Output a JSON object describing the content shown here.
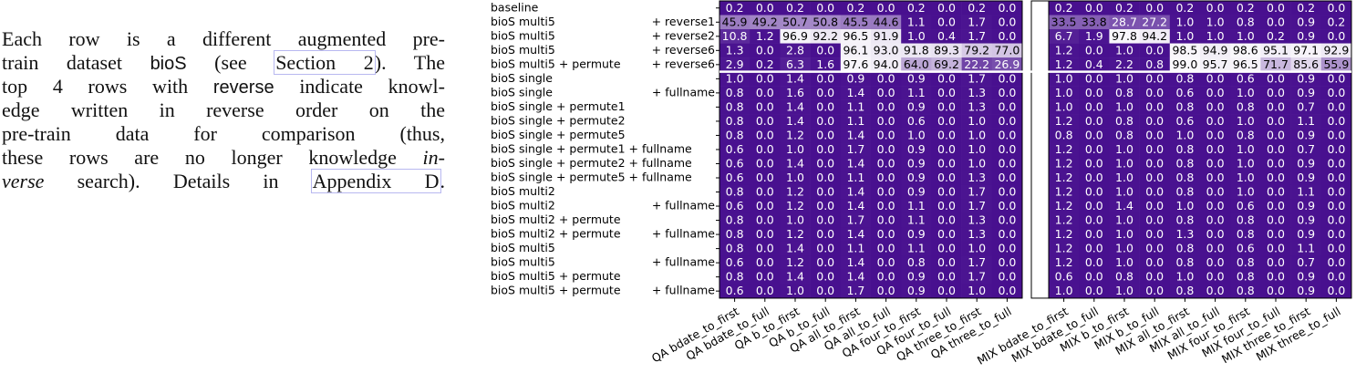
{
  "paragraph": {
    "lines": [
      [
        {
          "text": "Each row is a different augmented pre-"
        }
      ],
      [
        {
          "text": "train dataset "
        },
        {
          "text": "bioS",
          "style": "sans"
        },
        {
          "text": " (see "
        },
        {
          "text": "Section 2",
          "style": "link"
        },
        {
          "text": ").  The"
        }
      ],
      [
        {
          "text": "top 4 rows with "
        },
        {
          "text": "reverse",
          "style": "sans"
        },
        {
          "text": " indicate knowl-"
        }
      ],
      [
        {
          "text": "edge written in reverse order on the"
        }
      ],
      [
        {
          "text": "pre-train data for comparison (thus,"
        }
      ],
      [
        {
          "text": "these rows are no longer knowledge "
        },
        {
          "text": "in-",
          "style": "italic"
        }
      ],
      [
        {
          "text": "verse",
          "style": "italic"
        },
        {
          "text": " search).  Details in "
        },
        {
          "text": "Appendix D",
          "style": "link"
        },
        {
          "text": "."
        }
      ]
    ]
  },
  "chart_data": {
    "type": "heatmap",
    "rows": [
      {
        "label": "baseline"
      },
      {
        "label": "bioS multi5",
        "suffix": "+ reverse1"
      },
      {
        "label": "bioS multi5",
        "suffix": "+ reverse2"
      },
      {
        "label": "bioS multi5",
        "suffix": "+ reverse6"
      },
      {
        "label": "bioS multi5 + permute",
        "suffix": "+ reverse6"
      },
      {
        "label": "bioS single"
      },
      {
        "label": "bioS single",
        "suffix": "+ fullname"
      },
      {
        "label": "bioS single + permute1"
      },
      {
        "label": "bioS single + permute2"
      },
      {
        "label": "bioS single + permute5"
      },
      {
        "label": "bioS single + permute1 + fullname"
      },
      {
        "label": "bioS single + permute2 + fullname"
      },
      {
        "label": "bioS single + permute5 + fullname"
      },
      {
        "label": "bioS multi2"
      },
      {
        "label": "bioS multi2",
        "suffix": "+ fullname"
      },
      {
        "label": "bioS multi2 + permute"
      },
      {
        "label": "bioS multi2 + permute",
        "suffix": "+ fullname"
      },
      {
        "label": "bioS multi5"
      },
      {
        "label": "bioS multi5",
        "suffix": "+ fullname"
      },
      {
        "label": "bioS multi5 + permute"
      },
      {
        "label": "bioS multi5 + permute",
        "suffix": "+ fullname"
      }
    ],
    "columns": [
      "QA bdate_to_first",
      "QA bdate_to_full",
      "QA b_to_first",
      "QA b_to_full",
      "QA all_to_first",
      "QA all_to_full",
      "QA four_to_first",
      "QA four_to_full",
      "QA three_to_first",
      "QA three_to_full",
      null,
      "MIX bdate_to_first",
      "MIX bdate_to_full",
      "MIX b_to_first",
      "MIX b_to_full",
      "MIX all_to_first",
      "MIX all_to_full",
      "MIX four_to_first",
      "MIX four_to_full",
      "MIX three_to_first",
      "MIX three_to_full"
    ],
    "values": [
      [
        0.2,
        0.0,
        0.2,
        0.0,
        0.2,
        0.0,
        0.2,
        0.0,
        0.2,
        0.0,
        null,
        0.2,
        0.0,
        0.2,
        0.0,
        0.2,
        0.0,
        0.2,
        0.0,
        0.2,
        0.0
      ],
      [
        45.9,
        49.2,
        50.7,
        50.8,
        45.5,
        44.6,
        1.1,
        0.0,
        1.7,
        0.0,
        null,
        33.5,
        33.8,
        28.7,
        27.2,
        1.0,
        1.0,
        0.8,
        0.0,
        0.9,
        0.2
      ],
      [
        10.8,
        1.2,
        96.9,
        92.2,
        96.5,
        91.9,
        1.0,
        0.4,
        1.7,
        0.0,
        null,
        6.7,
        1.9,
        97.8,
        94.2,
        1.0,
        1.0,
        1.0,
        0.2,
        0.9,
        0.0
      ],
      [
        1.3,
        0.0,
        2.8,
        0.0,
        96.1,
        93.0,
        91.8,
        89.3,
        79.2,
        77.0,
        null,
        1.2,
        0.0,
        1.0,
        0.0,
        98.5,
        94.9,
        98.6,
        95.1,
        97.1,
        92.9
      ],
      [
        2.9,
        0.2,
        6.3,
        1.6,
        97.6,
        94.0,
        64.0,
        69.2,
        22.2,
        26.9,
        null,
        1.2,
        0.4,
        2.2,
        0.8,
        99.0,
        95.7,
        96.5,
        71.7,
        85.6,
        55.9
      ],
      [
        1.0,
        0.0,
        1.4,
        0.0,
        0.9,
        0.0,
        0.9,
        0.0,
        1.7,
        0.0,
        null,
        1.0,
        0.0,
        1.0,
        0.0,
        0.8,
        0.0,
        0.6,
        0.0,
        0.9,
        0.0
      ],
      [
        0.8,
        0.0,
        1.6,
        0.0,
        1.4,
        0.0,
        1.1,
        0.0,
        1.3,
        0.0,
        null,
        1.0,
        0.0,
        0.8,
        0.0,
        0.6,
        0.0,
        1.0,
        0.0,
        0.9,
        0.0
      ],
      [
        0.8,
        0.0,
        1.4,
        0.0,
        1.1,
        0.0,
        0.9,
        0.0,
        1.3,
        0.0,
        null,
        1.0,
        0.0,
        1.0,
        0.0,
        0.8,
        0.0,
        0.8,
        0.0,
        0.7,
        0.0
      ],
      [
        0.8,
        0.0,
        1.4,
        0.0,
        1.1,
        0.0,
        0.6,
        0.0,
        1.0,
        0.0,
        null,
        1.2,
        0.0,
        0.8,
        0.0,
        0.6,
        0.0,
        1.0,
        0.0,
        1.1,
        0.0
      ],
      [
        0.8,
        0.0,
        1.2,
        0.0,
        1.4,
        0.0,
        1.0,
        0.0,
        1.0,
        0.0,
        null,
        0.8,
        0.0,
        0.8,
        0.0,
        1.0,
        0.0,
        0.8,
        0.0,
        0.9,
        0.0
      ],
      [
        0.6,
        0.0,
        1.0,
        0.0,
        1.7,
        0.0,
        0.9,
        0.0,
        1.0,
        0.0,
        null,
        1.2,
        0.0,
        1.0,
        0.0,
        0.8,
        0.0,
        1.0,
        0.0,
        0.7,
        0.0
      ],
      [
        0.6,
        0.0,
        1.4,
        0.0,
        1.4,
        0.0,
        0.9,
        0.0,
        1.0,
        0.0,
        null,
        1.2,
        0.0,
        1.0,
        0.0,
        0.8,
        0.0,
        1.0,
        0.0,
        0.9,
        0.0
      ],
      [
        0.6,
        0.0,
        1.0,
        0.0,
        1.1,
        0.0,
        0.9,
        0.0,
        1.3,
        0.0,
        null,
        1.2,
        0.0,
        1.0,
        0.0,
        0.8,
        0.0,
        1.0,
        0.0,
        0.9,
        0.0
      ],
      [
        0.8,
        0.0,
        1.2,
        0.0,
        1.4,
        0.0,
        0.9,
        0.0,
        1.7,
        0.0,
        null,
        1.2,
        0.0,
        1.0,
        0.0,
        0.8,
        0.0,
        1.0,
        0.0,
        1.1,
        0.0
      ],
      [
        0.6,
        0.0,
        1.2,
        0.0,
        1.4,
        0.0,
        1.1,
        0.0,
        1.7,
        0.0,
        null,
        1.2,
        0.0,
        1.4,
        0.0,
        1.0,
        0.0,
        0.6,
        0.0,
        0.9,
        0.0
      ],
      [
        0.8,
        0.0,
        1.0,
        0.0,
        1.7,
        0.0,
        1.1,
        0.0,
        1.3,
        0.0,
        null,
        1.2,
        0.0,
        1.0,
        0.0,
        0.8,
        0.0,
        0.8,
        0.0,
        0.9,
        0.0
      ],
      [
        0.8,
        0.0,
        1.2,
        0.0,
        1.4,
        0.0,
        0.9,
        0.0,
        1.3,
        0.0,
        null,
        1.2,
        0.0,
        1.0,
        0.0,
        1.3,
        0.0,
        0.8,
        0.0,
        0.9,
        0.0
      ],
      [
        0.8,
        0.0,
        1.4,
        0.0,
        1.1,
        0.0,
        1.1,
        0.0,
        1.0,
        0.0,
        null,
        1.2,
        0.0,
        1.0,
        0.0,
        0.8,
        0.0,
        0.6,
        0.0,
        1.1,
        0.0
      ],
      [
        0.6,
        0.0,
        1.2,
        0.0,
        1.4,
        0.0,
        0.8,
        0.0,
        1.7,
        0.0,
        null,
        1.2,
        0.0,
        1.0,
        0.0,
        0.8,
        0.0,
        0.8,
        0.0,
        0.7,
        0.0
      ],
      [
        0.8,
        0.0,
        1.4,
        0.0,
        1.4,
        0.0,
        0.9,
        0.0,
        1.7,
        0.0,
        null,
        0.6,
        0.0,
        0.8,
        0.0,
        1.0,
        0.0,
        0.8,
        0.0,
        0.9,
        0.0
      ],
      [
        0.6,
        0.0,
        1.0,
        0.0,
        1.7,
        0.0,
        0.9,
        0.0,
        1.0,
        0.0,
        null,
        1.0,
        0.0,
        1.0,
        0.0,
        0.8,
        0.0,
        0.8,
        0.0,
        0.9,
        0.0
      ]
    ],
    "value_labels": [
      [
        "0.2",
        "0.0",
        "0.2",
        "0.0",
        "0.2",
        "0.0",
        "0.2",
        "0.0",
        "0.2",
        "0.0",
        null,
        "0.2",
        "0.0",
        "0.2",
        "0.0",
        "0.2",
        "0.0",
        "0.2",
        "0.0",
        "0.2",
        "0.0"
      ],
      [
        "45.9",
        "49.2",
        "50.7",
        "50.8",
        "45.5",
        "44.6",
        "1.1",
        "0.0",
        "1.7",
        "0.0",
        null,
        "33.5",
        "33.8",
        "28.7",
        "27.2",
        "1.0",
        "1.0",
        "0.8",
        "0.0",
        "0.9",
        "0.2"
      ],
      [
        "10.8",
        "1.2",
        "96.9",
        "92.2",
        "96.5",
        "91.9",
        "1.0",
        "0.4",
        "1.7",
        "0.0",
        null,
        "6.7",
        "1.9",
        "97.8",
        "94.2",
        "1.0",
        "1.0",
        "1.0",
        "0.2",
        "0.9",
        "0.0"
      ],
      [
        "1.3",
        "0.0",
        "2.8",
        "0.0",
        "96.1",
        "93.0",
        "91.8",
        "89.3",
        "79.2",
        "77.0",
        null,
        "1.2",
        "0.0",
        "1.0",
        "0.0",
        "98.5",
        "94.9",
        "98.6",
        "95.1",
        "97.1",
        "92.9"
      ],
      [
        "2.9",
        "0.2",
        "6.3",
        "1.6",
        "97.6",
        "94.0",
        "64.0",
        "69.2",
        "22.2",
        "26.9",
        null,
        "1.2",
        "0.4",
        "2.2",
        "0.8",
        "99.0",
        "95.7",
        "96.5",
        "71.7",
        "85.6",
        "55.9"
      ],
      [
        "1.0",
        "0.0",
        "1.4",
        "0.0",
        "0.9",
        "0.0",
        "0.9",
        "0.0",
        "1.7",
        "0.0",
        null,
        "1.0",
        "0.0",
        "1.0",
        "0.0",
        "0.8",
        "0.0",
        "0.6",
        "0.0",
        "0.9",
        "0.0"
      ],
      [
        "0.8",
        "0.0",
        "1.6",
        "0.0",
        "1.4",
        "0.0",
        "1.1",
        "0.0",
        "1.3",
        "0.0",
        null,
        "1.0",
        "0.0",
        "0.8",
        "0.0",
        "0.6",
        "0.0",
        "1.0",
        "0.0",
        "0.9",
        "0.0"
      ],
      [
        "0.8",
        "0.0",
        "1.4",
        "0.0",
        "1.1",
        "0.0",
        "0.9",
        "0.0",
        "1.3",
        "0.0",
        null,
        "1.0",
        "0.0",
        "1.0",
        "0.0",
        "0.8",
        "0.0",
        "0.8",
        "0.0",
        "0.7",
        "0.0"
      ],
      [
        "0.8",
        "0.0",
        "1.4",
        "0.0",
        "1.1",
        "0.0",
        "0.6",
        "0.0",
        "1.0",
        "0.0",
        null,
        "1.2",
        "0.0",
        "0.8",
        "0.0",
        "0.6",
        "0.0",
        "1.0",
        "0.0",
        "1.1",
        "0.0"
      ],
      [
        "0.8",
        "0.0",
        "1.2",
        "0.0",
        "1.4",
        "0.0",
        "1.0",
        "0.0",
        "1.0",
        "0.0",
        null,
        "0.8",
        "0.0",
        "0.8",
        "0.0",
        "1.0",
        "0.0",
        "0.8",
        "0.0",
        "0.9",
        "0.0"
      ],
      [
        "0.6",
        "0.0",
        "1.0",
        "0.0",
        "1.7",
        "0.0",
        "0.9",
        "0.0",
        "1.0",
        "0.0",
        null,
        "1.2",
        "0.0",
        "1.0",
        "0.0",
        "0.8",
        "0.0",
        "1.0",
        "0.0",
        "0.7",
        "0.0"
      ],
      [
        "0.6",
        "0.0",
        "1.4",
        "0.0",
        "1.4",
        "0.0",
        "0.9",
        "0.0",
        "1.0",
        "0.0",
        null,
        "1.2",
        "0.0",
        "1.0",
        "0.0",
        "0.8",
        "0.0",
        "1.0",
        "0.0",
        "0.9",
        "0.0"
      ],
      [
        "0.6",
        "0.0",
        "1.0",
        "0.0",
        "1.1",
        "0.0",
        "0.9",
        "0.0",
        "1.3",
        "0.0",
        null,
        "1.2",
        "0.0",
        "1.0",
        "0.0",
        "0.8",
        "0.0",
        "1.0",
        "0.0",
        "0.9",
        "0.0"
      ],
      [
        "0.8",
        "0.0",
        "1.2",
        "0.0",
        "1.4",
        "0.0",
        "0.9",
        "0.0",
        "1.7",
        "0.0",
        null,
        "1.2",
        "0.0",
        "1.0",
        "0.0",
        "0.8",
        "0.0",
        "1.0",
        "0.0",
        "1.1",
        "0.0"
      ],
      [
        "0.6",
        "0.0",
        "1.2",
        "0.0",
        "1.4",
        "0.0",
        "1.1",
        "0.0",
        "1.7",
        "0.0",
        null,
        "1.2",
        "0.0",
        "1.4",
        "0.0",
        "1.0",
        "0.0",
        "0.6",
        "0.0",
        "0.9",
        "0.0"
      ],
      [
        "0.8",
        "0.0",
        "1.0",
        "0.0",
        "1.7",
        "0.0",
        "1.1",
        "0.0",
        "1.3",
        "0.0",
        null,
        "1.2",
        "0.0",
        "1.0",
        "0.0",
        "0.8",
        "0.0",
        "0.8",
        "0.0",
        "0.9",
        "0.0"
      ],
      [
        "0.8",
        "0.0",
        "1.2",
        "0.0",
        "1.4",
        "0.0",
        "0.9",
        "0.0",
        "1.3",
        "0.0",
        null,
        "1.2",
        "0.0",
        "1.0",
        "0.0",
        "1.3",
        "0.0",
        "0.8",
        "0.0",
        "0.9",
        "0.0"
      ],
      [
        "0.8",
        "0.0",
        "1.4",
        "0.0",
        "1.1",
        "0.0",
        "1.1",
        "0.0",
        "1.0",
        "0.0",
        null,
        "1.2",
        "0.0",
        "1.0",
        "0.0",
        "0.8",
        "0.0",
        "0.6",
        "0.0",
        "1.1",
        "0.0"
      ],
      [
        "0.6",
        "0.0",
        "1.2",
        "0.0",
        "1.4",
        "0.0",
        "0.8",
        "0.0",
        "1.7",
        "0.0",
        null,
        "1.2",
        "0.0",
        "1.0",
        "0.0",
        "0.8",
        "0.0",
        "0.8",
        "0.0",
        "0.7",
        "0.0"
      ],
      [
        "0.8",
        "0.0",
        "1.4",
        "0.0",
        "1.4",
        "0.0",
        "0.9",
        "0.0",
        "1.7",
        "0.0",
        null,
        "0.6",
        "0.0",
        "0.8",
        "0.0",
        "1.0",
        "0.0",
        "0.8",
        "0.0",
        "0.9",
        "0.0"
      ],
      [
        "0.6",
        "0.0",
        "1.0",
        "0.0",
        "1.7",
        "0.0",
        "0.9",
        "0.0",
        "1.0",
        "0.0",
        null,
        "1.0",
        "0.0",
        "1.0",
        "0.0",
        "0.8",
        "0.0",
        "0.8",
        "0.0",
        "0.9",
        "0.0"
      ]
    ],
    "zlim": [
      0,
      100
    ],
    "colors": [
      "#48108f",
      "#fcfbfd"
    ]
  }
}
